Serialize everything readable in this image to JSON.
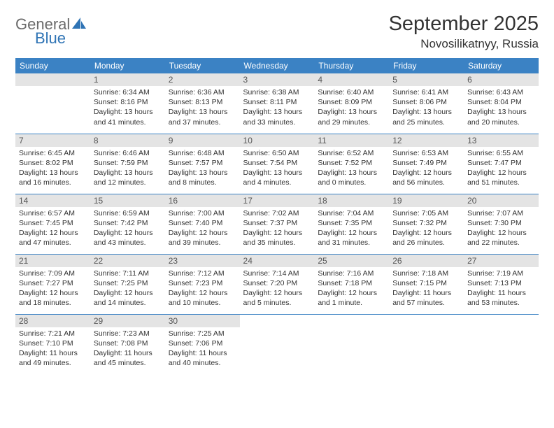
{
  "logo": {
    "text1": "General",
    "text2": "Blue"
  },
  "title": "September 2025",
  "location": "Novosilikatnyy, Russia",
  "colors": {
    "header_bg": "#3b82c4",
    "header_text": "#ffffff",
    "daynum_bg": "#e4e4e4",
    "border": "#3b82c4",
    "text": "#333333",
    "logo_gray": "#6b6b6b",
    "logo_blue": "#2f74b5"
  },
  "dayHeaders": [
    "Sunday",
    "Monday",
    "Tuesday",
    "Wednesday",
    "Thursday",
    "Friday",
    "Saturday"
  ],
  "weeks": [
    [
      null,
      {
        "n": "1",
        "sr": "6:34 AM",
        "ss": "8:16 PM",
        "dl": "13 hours and 41 minutes."
      },
      {
        "n": "2",
        "sr": "6:36 AM",
        "ss": "8:13 PM",
        "dl": "13 hours and 37 minutes."
      },
      {
        "n": "3",
        "sr": "6:38 AM",
        "ss": "8:11 PM",
        "dl": "13 hours and 33 minutes."
      },
      {
        "n": "4",
        "sr": "6:40 AM",
        "ss": "8:09 PM",
        "dl": "13 hours and 29 minutes."
      },
      {
        "n": "5",
        "sr": "6:41 AM",
        "ss": "8:06 PM",
        "dl": "13 hours and 25 minutes."
      },
      {
        "n": "6",
        "sr": "6:43 AM",
        "ss": "8:04 PM",
        "dl": "13 hours and 20 minutes."
      }
    ],
    [
      {
        "n": "7",
        "sr": "6:45 AM",
        "ss": "8:02 PM",
        "dl": "13 hours and 16 minutes."
      },
      {
        "n": "8",
        "sr": "6:46 AM",
        "ss": "7:59 PM",
        "dl": "13 hours and 12 minutes."
      },
      {
        "n": "9",
        "sr": "6:48 AM",
        "ss": "7:57 PM",
        "dl": "13 hours and 8 minutes."
      },
      {
        "n": "10",
        "sr": "6:50 AM",
        "ss": "7:54 PM",
        "dl": "13 hours and 4 minutes."
      },
      {
        "n": "11",
        "sr": "6:52 AM",
        "ss": "7:52 PM",
        "dl": "13 hours and 0 minutes."
      },
      {
        "n": "12",
        "sr": "6:53 AM",
        "ss": "7:49 PM",
        "dl": "12 hours and 56 minutes."
      },
      {
        "n": "13",
        "sr": "6:55 AM",
        "ss": "7:47 PM",
        "dl": "12 hours and 51 minutes."
      }
    ],
    [
      {
        "n": "14",
        "sr": "6:57 AM",
        "ss": "7:45 PM",
        "dl": "12 hours and 47 minutes."
      },
      {
        "n": "15",
        "sr": "6:59 AM",
        "ss": "7:42 PM",
        "dl": "12 hours and 43 minutes."
      },
      {
        "n": "16",
        "sr": "7:00 AM",
        "ss": "7:40 PM",
        "dl": "12 hours and 39 minutes."
      },
      {
        "n": "17",
        "sr": "7:02 AM",
        "ss": "7:37 PM",
        "dl": "12 hours and 35 minutes."
      },
      {
        "n": "18",
        "sr": "7:04 AM",
        "ss": "7:35 PM",
        "dl": "12 hours and 31 minutes."
      },
      {
        "n": "19",
        "sr": "7:05 AM",
        "ss": "7:32 PM",
        "dl": "12 hours and 26 minutes."
      },
      {
        "n": "20",
        "sr": "7:07 AM",
        "ss": "7:30 PM",
        "dl": "12 hours and 22 minutes."
      }
    ],
    [
      {
        "n": "21",
        "sr": "7:09 AM",
        "ss": "7:27 PM",
        "dl": "12 hours and 18 minutes."
      },
      {
        "n": "22",
        "sr": "7:11 AM",
        "ss": "7:25 PM",
        "dl": "12 hours and 14 minutes."
      },
      {
        "n": "23",
        "sr": "7:12 AM",
        "ss": "7:23 PM",
        "dl": "12 hours and 10 minutes."
      },
      {
        "n": "24",
        "sr": "7:14 AM",
        "ss": "7:20 PM",
        "dl": "12 hours and 5 minutes."
      },
      {
        "n": "25",
        "sr": "7:16 AM",
        "ss": "7:18 PM",
        "dl": "12 hours and 1 minute."
      },
      {
        "n": "26",
        "sr": "7:18 AM",
        "ss": "7:15 PM",
        "dl": "11 hours and 57 minutes."
      },
      {
        "n": "27",
        "sr": "7:19 AM",
        "ss": "7:13 PM",
        "dl": "11 hours and 53 minutes."
      }
    ],
    [
      {
        "n": "28",
        "sr": "7:21 AM",
        "ss": "7:10 PM",
        "dl": "11 hours and 49 minutes."
      },
      {
        "n": "29",
        "sr": "7:23 AM",
        "ss": "7:08 PM",
        "dl": "11 hours and 45 minutes."
      },
      {
        "n": "30",
        "sr": "7:25 AM",
        "ss": "7:06 PM",
        "dl": "11 hours and 40 minutes."
      },
      null,
      null,
      null,
      null
    ]
  ]
}
